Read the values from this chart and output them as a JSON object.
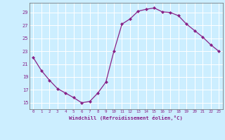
{
  "x": [
    0,
    1,
    2,
    3,
    4,
    5,
    6,
    7,
    8,
    9,
    10,
    11,
    12,
    13,
    14,
    15,
    16,
    17,
    18,
    19,
    20,
    21,
    22,
    23
  ],
  "y": [
    22.0,
    20.0,
    18.5,
    17.2,
    16.5,
    15.8,
    15.0,
    15.2,
    16.5,
    18.2,
    23.0,
    27.2,
    28.0,
    29.2,
    29.5,
    29.7,
    29.1,
    29.0,
    28.5,
    27.2,
    26.2,
    25.2,
    24.0,
    23.0
  ],
  "line_color": "#882288",
  "marker_color": "#882288",
  "bg_color": "#cceeff",
  "grid_color": "#ffffff",
  "text_color": "#882288",
  "xlabel": "Windchill (Refroidissement éolien,°C)",
  "ylim": [
    14.0,
    30.5
  ],
  "yticks": [
    15,
    17,
    19,
    21,
    23,
    25,
    27,
    29
  ],
  "xlim": [
    -0.5,
    23.5
  ],
  "xticks": [
    0,
    1,
    2,
    3,
    4,
    5,
    6,
    7,
    8,
    9,
    10,
    11,
    12,
    13,
    14,
    15,
    16,
    17,
    18,
    19,
    20,
    21,
    22,
    23
  ]
}
